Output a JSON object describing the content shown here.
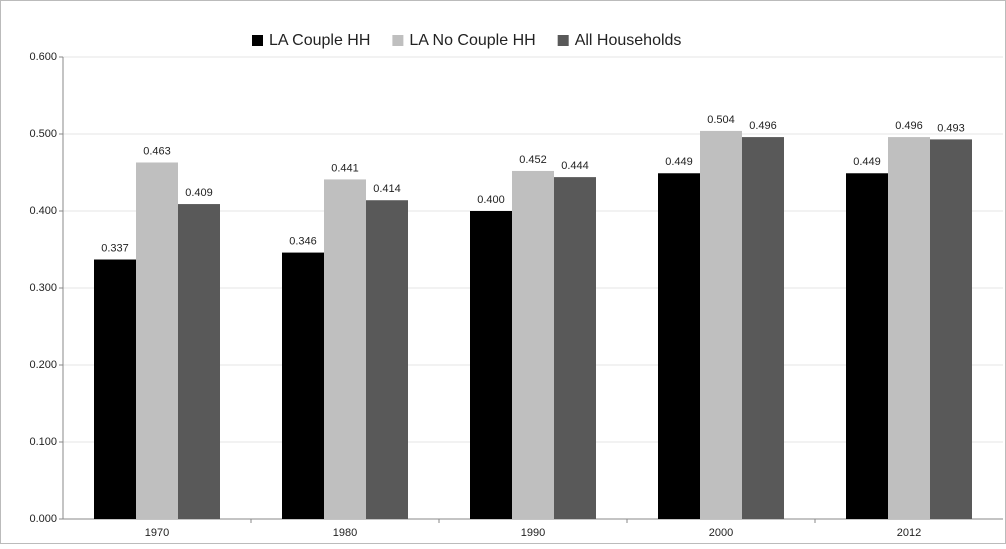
{
  "chart_data": {
    "type": "bar",
    "categories": [
      "1970",
      "1980",
      "1990",
      "2000",
      "2012"
    ],
    "series": [
      {
        "name": "LA Couple HH",
        "color": "#000000",
        "values": [
          0.337,
          0.346,
          0.4,
          0.449,
          0.449
        ],
        "value_labels": [
          "0.337",
          "0.346",
          "0.400",
          "0.449",
          "0.449"
        ]
      },
      {
        "name": "LA No Couple HH",
        "color": "#bfbfbf",
        "values": [
          0.463,
          0.441,
          0.452,
          0.504,
          0.496
        ],
        "value_labels": [
          "0.463",
          "0.441",
          "0.452",
          "0.504",
          "0.496"
        ]
      },
      {
        "name": "All Households",
        "color": "#595959",
        "values": [
          0.409,
          0.414,
          0.444,
          0.496,
          0.493
        ],
        "value_labels": [
          "0.409",
          "0.414",
          "0.444",
          "0.496",
          "0.493"
        ]
      }
    ],
    "ylim": [
      0,
      0.6
    ],
    "yticks": [
      {
        "value": 0,
        "label": "0.000"
      },
      {
        "value": 0.1,
        "label": "0.100"
      },
      {
        "value": 0.2,
        "label": "0.200"
      },
      {
        "value": 0.3,
        "label": "0.300"
      },
      {
        "value": 0.4,
        "label": "0.400"
      },
      {
        "value": 0.5,
        "label": "0.500"
      },
      {
        "value": 0.6,
        "label": "0.600"
      }
    ],
    "grid": true,
    "legend": "top"
  }
}
